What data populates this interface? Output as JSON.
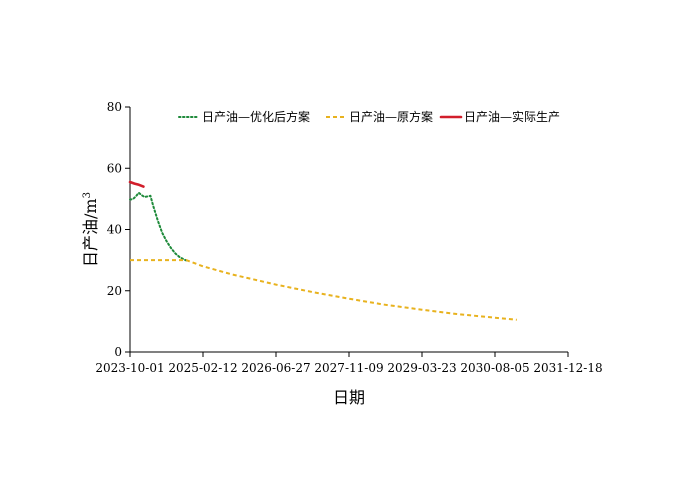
{
  "chart_data": {
    "type": "line",
    "title": "",
    "xlabel": "日期",
    "ylabel": "日产油/m³",
    "ylabel_parts": {
      "main": "日产油/m",
      "superscript": "3"
    },
    "x_axis": {
      "ticks": [
        "2023-10-01",
        "2025-02-12",
        "2026-06-27",
        "2027-11-09",
        "2029-03-23",
        "2030-08-05",
        "2031-12-18"
      ],
      "range": [
        "2023-10-01",
        "2031-12-18"
      ]
    },
    "y_axis": {
      "ticks": [
        "0",
        "20",
        "40",
        "60",
        "80"
      ],
      "range": [
        0,
        80
      ]
    },
    "grid": false,
    "legend": {
      "position": "top",
      "entries": [
        "日产油—优化后方案",
        "日产油—原方案",
        "日产油—实际生产"
      ]
    },
    "series": [
      {
        "name": "日产油—优化后方案",
        "color": "#1e8a3a",
        "style": "dotted",
        "points": [
          [
            "2023-10-01",
            49.8
          ],
          [
            "2023-10-21",
            49.9
          ],
          [
            "2023-11-10",
            50.8
          ],
          [
            "2023-11-30",
            52.0
          ],
          [
            "2023-12-20",
            51.2
          ],
          [
            "2024-01-09",
            50.6
          ],
          [
            "2024-01-29",
            50.8
          ],
          [
            "2024-02-18",
            51.0
          ],
          [
            "2024-03-09",
            47.5
          ],
          [
            "2024-04-08",
            43.0
          ],
          [
            "2024-05-08",
            39.0
          ],
          [
            "2024-06-07",
            36.2
          ],
          [
            "2024-07-07",
            34.0
          ],
          [
            "2024-08-06",
            32.2
          ],
          [
            "2024-09-05",
            31.0
          ],
          [
            "2024-10-05",
            30.2
          ],
          [
            "2024-10-20",
            29.9
          ]
        ]
      },
      {
        "name": "日产油—原方案",
        "color": "#e8b21e",
        "style": "dashed",
        "points": [
          [
            "2023-10-01",
            30.0
          ],
          [
            "2024-02-01",
            30.0
          ],
          [
            "2024-06-01",
            30.0
          ],
          [
            "2024-10-20",
            30.0
          ],
          [
            "2025-02-12",
            28.0
          ],
          [
            "2025-09-01",
            25.3
          ],
          [
            "2026-06-27",
            22.0
          ],
          [
            "2027-03-01",
            19.6
          ],
          [
            "2027-11-09",
            17.4
          ],
          [
            "2028-07-01",
            15.5
          ],
          [
            "2029-03-23",
            13.8
          ],
          [
            "2029-11-15",
            12.4
          ],
          [
            "2030-08-05",
            11.2
          ],
          [
            "2031-01-01",
            10.5
          ]
        ]
      },
      {
        "name": "日产油—实际生产",
        "color": "#d21e2b",
        "style": "solid",
        "points": [
          [
            "2023-10-01",
            55.5
          ],
          [
            "2023-11-01",
            55.0
          ],
          [
            "2023-12-01",
            54.6
          ],
          [
            "2024-01-01",
            54.0
          ]
        ]
      }
    ]
  }
}
